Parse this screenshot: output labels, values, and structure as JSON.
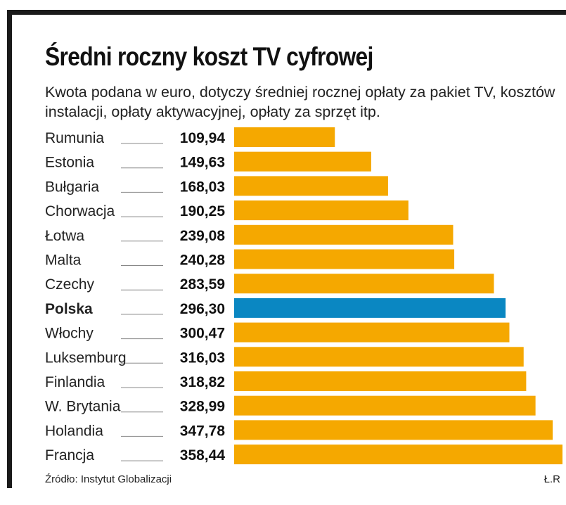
{
  "chart_data": {
    "type": "bar",
    "orientation": "horizontal",
    "title": "Średni roczny koszt TV cyfrowej",
    "subtitle": "Kwota podana w euro, dotyczy średniej rocznej opłaty za pakiet TV, kosztów instalacji, opłaty aktywacyjnej, opłaty za sprzęt itp.",
    "categories": [
      "Rumunia",
      "Estonia",
      "Bułgaria",
      "Chorwacja",
      "Łotwa",
      "Malta",
      "Czechy",
      "Polska",
      "Włochy",
      "Luksemburg",
      "Finlandia",
      "W. Brytania",
      "Holandia",
      "Francja"
    ],
    "values": [
      109.94,
      149.63,
      168.03,
      190.25,
      239.08,
      240.28,
      283.59,
      296.3,
      300.47,
      316.03,
      318.82,
      328.99,
      347.78,
      358.44
    ],
    "value_labels": [
      "109,94",
      "149,63",
      "168,03",
      "190,25",
      "239,08",
      "240,28",
      "283,59",
      "296,30",
      "300,47",
      "316,03",
      "318,82",
      "328,99",
      "347,78",
      "358,44"
    ],
    "highlight": "Polska",
    "xlim": [
      0,
      358.44
    ],
    "source": "Źródło: Instytut Globalizacji",
    "credit": "Ł.R"
  },
  "colors": {
    "bar": "#f5a800",
    "highlight_bar": "#0a87c2",
    "frame": "#1a1a1a",
    "leader_line": "#888888"
  }
}
